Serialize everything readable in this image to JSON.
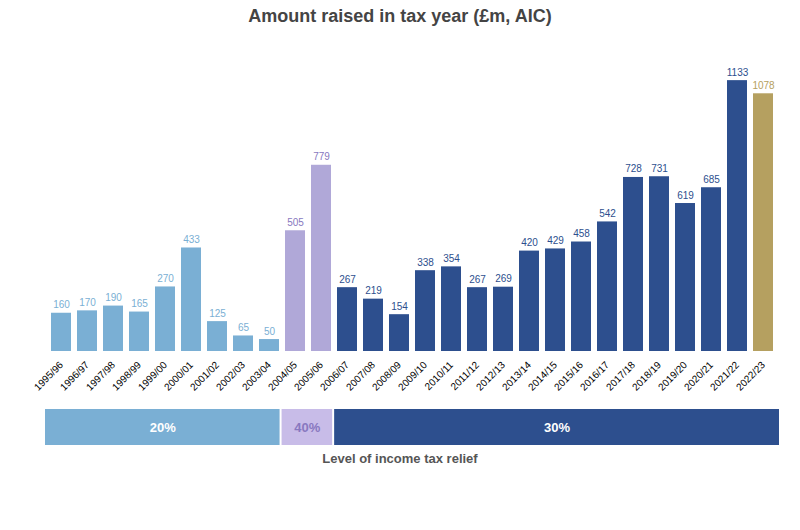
{
  "chart_data": {
    "type": "bar",
    "title": "Amount raised in tax year (£m, AIC)",
    "xlabel": "Level of income tax relief",
    "categories": [
      "1995/96",
      "1996/97",
      "1997/98",
      "1998/99",
      "1999/00",
      "2000/01",
      "2001/02",
      "2002/03",
      "2003/04",
      "2004/05",
      "2005/06",
      "2006/07",
      "2007/08",
      "2008/09",
      "2009/10",
      "2010/11",
      "2011/12",
      "2012/13",
      "2013/14",
      "2014/15",
      "2015/16",
      "2016/17",
      "2017/18",
      "2018/19",
      "2019/20",
      "2020/21",
      "2021/22",
      "2022/23"
    ],
    "values": [
      160,
      170,
      190,
      165,
      270,
      433,
      125,
      65,
      50,
      505,
      779,
      267,
      219,
      154,
      338,
      354,
      267,
      269,
      420,
      429,
      458,
      542,
      728,
      731,
      619,
      685,
      1133,
      1078
    ],
    "colors": [
      "#7aafd4",
      "#7aafd4",
      "#7aafd4",
      "#7aafd4",
      "#7aafd4",
      "#7aafd4",
      "#7aafd4",
      "#7aafd4",
      "#7aafd4",
      "#b0a8d8",
      "#b0a8d8",
      "#2d4f8e",
      "#2d4f8e",
      "#2d4f8e",
      "#2d4f8e",
      "#2d4f8e",
      "#2d4f8e",
      "#2d4f8e",
      "#2d4f8e",
      "#2d4f8e",
      "#2d4f8e",
      "#2d4f8e",
      "#2d4f8e",
      "#2d4f8e",
      "#2d4f8e",
      "#2d4f8e",
      "#2d4f8e",
      "#b5a060"
    ],
    "label_colors": [
      "#7aafd4",
      "#7aafd4",
      "#7aafd4",
      "#7aafd4",
      "#7aafd4",
      "#7aafd4",
      "#7aafd4",
      "#7aafd4",
      "#7aafd4",
      "#8878c0",
      "#8878c0",
      "#2d4f8e",
      "#2d4f8e",
      "#2d4f8e",
      "#2d4f8e",
      "#2d4f8e",
      "#2d4f8e",
      "#2d4f8e",
      "#2d4f8e",
      "#2d4f8e",
      "#2d4f8e",
      "#2d4f8e",
      "#2d4f8e",
      "#2d4f8e",
      "#2d4f8e",
      "#2d4f8e",
      "#2d4f8e",
      "#b5a060"
    ],
    "bands": [
      {
        "label": "20%",
        "from": "1995/96",
        "to": "2003/04",
        "color": "#7aafd4",
        "text_color": "#ffffff"
      },
      {
        "label": "40%",
        "from": "2004/05",
        "to": "2005/06",
        "color": "#c8bce8",
        "text_color": "#8878c0"
      },
      {
        "label": "30%",
        "from": "2006/07",
        "to": "2022/23",
        "color": "#2d4f8e",
        "text_color": "#ffffff"
      }
    ],
    "ylim": [
      0,
      1280
    ],
    "data_labels": true,
    "tick_labels": "x",
    "grid": false
  }
}
